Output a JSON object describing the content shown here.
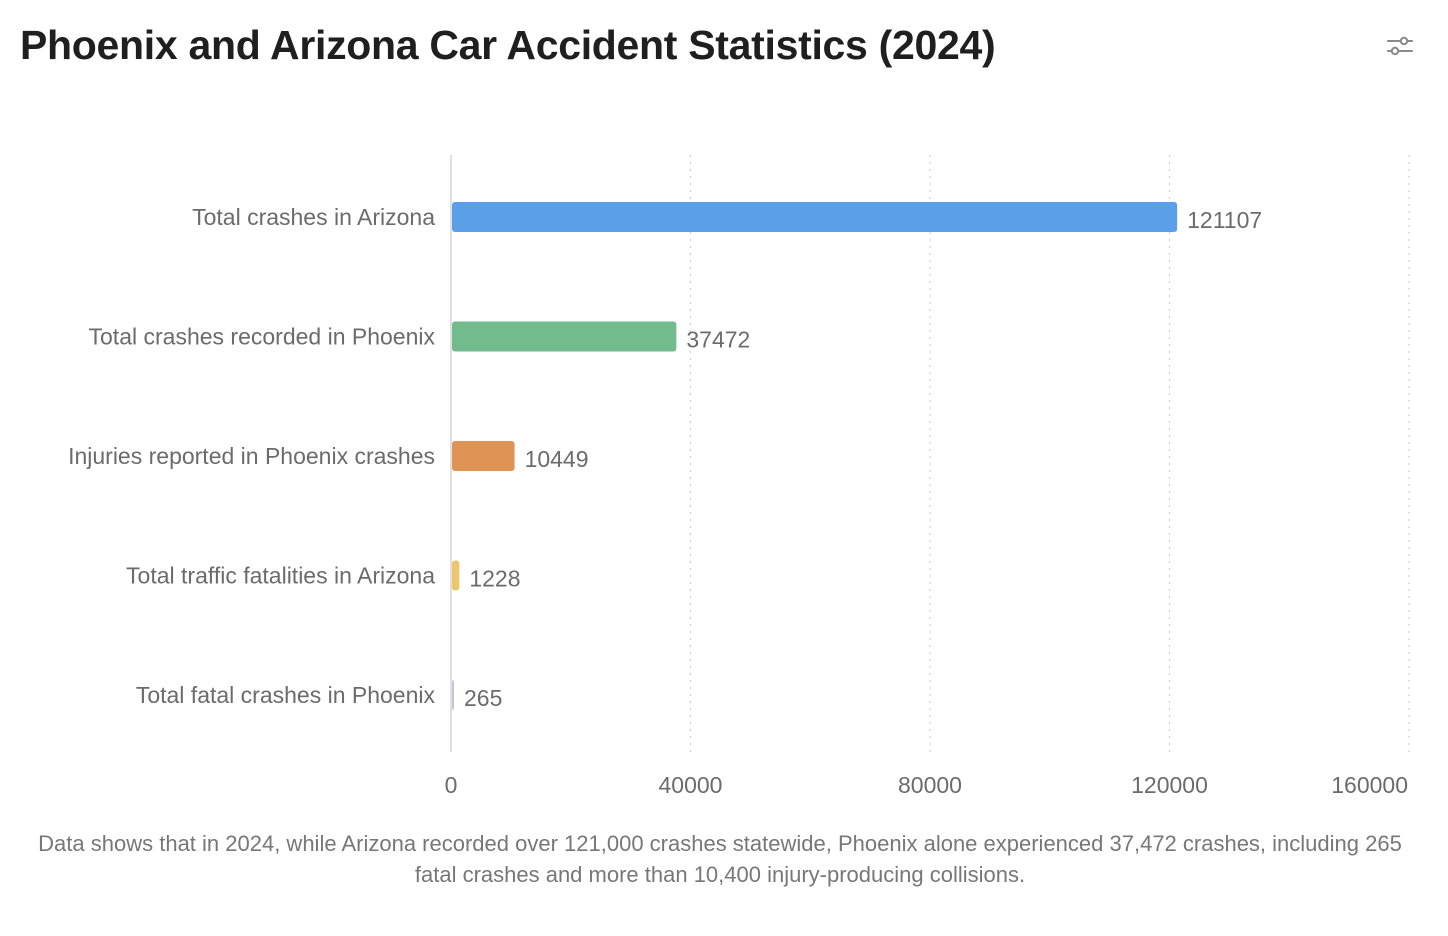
{
  "header": {
    "title": "Phoenix and Arizona Car Accident Statistics (2024)",
    "settings_icon": "sliders-icon"
  },
  "caption": "Data shows that in 2024, while Arizona recorded over 121,000 crashes statewide, Phoenix alone experienced 37,472 crashes, including 265 fatal crashes and more than 10,400 injury-producing collisions.",
  "chart_data": {
    "type": "bar",
    "orientation": "horizontal",
    "title": "Phoenix and Arizona Car Accident Statistics (2024)",
    "xlabel": "",
    "ylabel": "",
    "xlim": [
      0,
      160000
    ],
    "x_ticks": [
      "0",
      "40000",
      "80000",
      "120000",
      "160000"
    ],
    "grid": "vertical dotted",
    "legend": "none",
    "categories": [
      "Total crashes in Arizona",
      "Total crashes recorded in Phoenix",
      "Injuries reported in Phoenix crashes",
      "Total traffic fatalities in Arizona",
      "Total fatal crashes in Phoenix"
    ],
    "values": [
      121107,
      37472,
      10449,
      1228,
      265
    ],
    "colors": [
      "#5b9fe8",
      "#72bb8c",
      "#df9355",
      "#ecc66a",
      "#c9c0dc"
    ]
  }
}
